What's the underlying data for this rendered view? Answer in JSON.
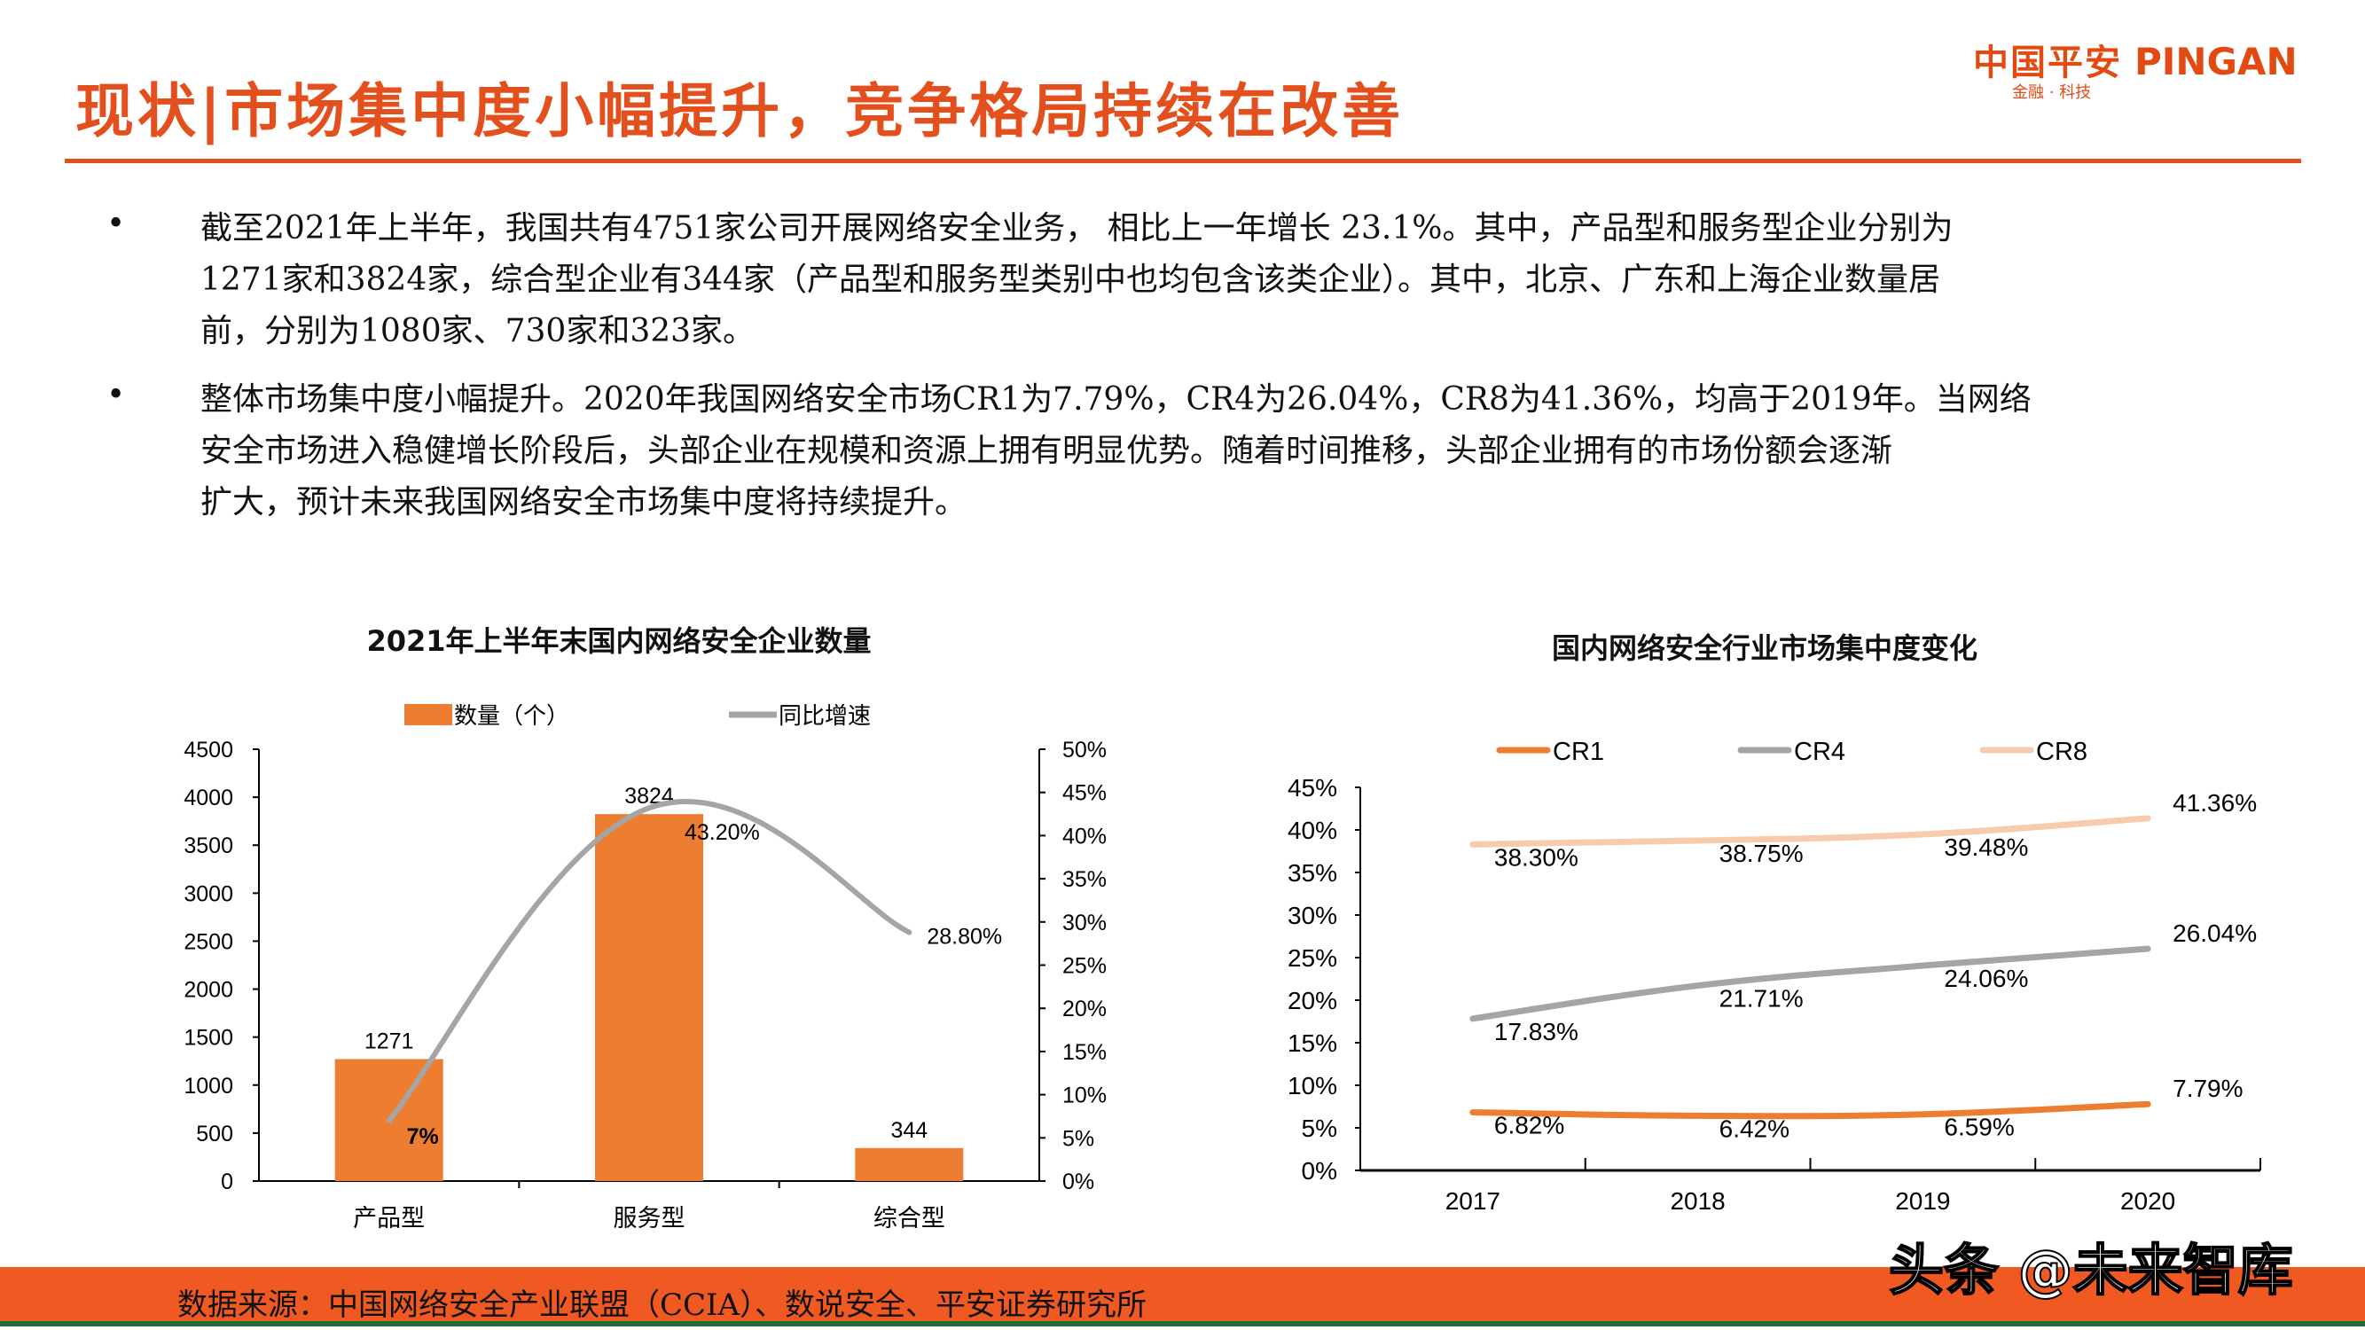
{
  "header": {
    "title": "现状|市场集中度小幅提升，竞争格局持续在改善",
    "logo": {
      "cn": "中国平安",
      "en": "PINGAN",
      "tagline": "金融 · 科技"
    }
  },
  "bullets": [
    {
      "symbol": "•",
      "lines": [
        "截至2021年上半年，我国共有4751家公司开展网络安全业务， 相比上一年增长 23.1%。其中，产品型和服务型企业分别为",
        "1271家和3824家，综合型企业有344家（产品型和服务型类别中也均包含该类企业）。其中，北京、广东和上海企业数量居",
        "前，分别为1080家、730家和323家。"
      ]
    },
    {
      "symbol": "•",
      "lines": [
        "整体市场集中度小幅提升。2020年我国网络安全市场CR1为7.79%，CR4为26.04%，CR8为41.36%，均高于2019年。当网络",
        "安全市场进入稳健增长阶段后，头部企业在规模和资源上拥有明显优势。随着时间推移，头部企业拥有的市场份额会逐渐",
        "扩大，预计未来我国网络安全市场集中度将持续提升。"
      ]
    }
  ],
  "chart_data": [
    {
      "type": "bar+line",
      "title": "2021年上半年末国内网络安全企业数量",
      "categories": [
        "产品型",
        "服务型",
        "综合型"
      ],
      "series": [
        {
          "name": "数量（个）",
          "type": "bar",
          "axis": "left",
          "values": [
            1271,
            3824,
            344
          ],
          "labels": [
            "1271",
            "3824",
            "344"
          ],
          "color": "#ED7D31"
        },
        {
          "name": "同比增速",
          "type": "line",
          "axis": "right",
          "values": [
            7,
            43.2,
            28.8
          ],
          "labels": [
            "7%",
            "43.20%",
            "28.80%"
          ],
          "color": "#A5A5A5"
        }
      ],
      "ylim_left": [
        0,
        4500
      ],
      "yticks_left": [
        "0",
        "500",
        "1000",
        "1500",
        "2000",
        "2500",
        "3000",
        "3500",
        "4000",
        "4500"
      ],
      "ylim_right": [
        0,
        50
      ],
      "yticks_right": [
        "0%",
        "5%",
        "10%",
        "15%",
        "20%",
        "25%",
        "30%",
        "35%",
        "40%",
        "45%",
        "50%"
      ],
      "legend": "top",
      "grid": false
    },
    {
      "type": "line",
      "title": "国内网络安全行业市场集中度变化",
      "categories": [
        "2017",
        "2018",
        "2019",
        "2020"
      ],
      "series": [
        {
          "name": "CR1",
          "values": [
            6.82,
            6.42,
            6.59,
            7.79
          ],
          "labels": [
            "6.82%",
            "6.42%",
            "6.59%",
            "7.79%"
          ],
          "color": "#ED7D31"
        },
        {
          "name": "CR4",
          "values": [
            17.83,
            21.71,
            24.06,
            26.04
          ],
          "labels": [
            "17.83%",
            "21.71%",
            "24.06%",
            "26.04%"
          ],
          "color": "#A5A5A5"
        },
        {
          "name": "CR8",
          "values": [
            38.3,
            38.75,
            39.48,
            41.36
          ],
          "labels": [
            "38.30%",
            "38.75%",
            "39.48%",
            "41.36%"
          ],
          "color": "#F8CBAD"
        }
      ],
      "ylim": [
        0,
        45
      ],
      "yticks": [
        "0%",
        "5%",
        "10%",
        "15%",
        "20%",
        "25%",
        "30%",
        "35%",
        "40%",
        "45%"
      ],
      "legend": "top",
      "grid": false
    }
  ],
  "footer": {
    "source": "数据来源：中国网络安全产业联盟（CCIA）、数说安全、平安证券研究所",
    "watermark": "头条 @未来智库",
    "bar_color": "#F05A22"
  }
}
